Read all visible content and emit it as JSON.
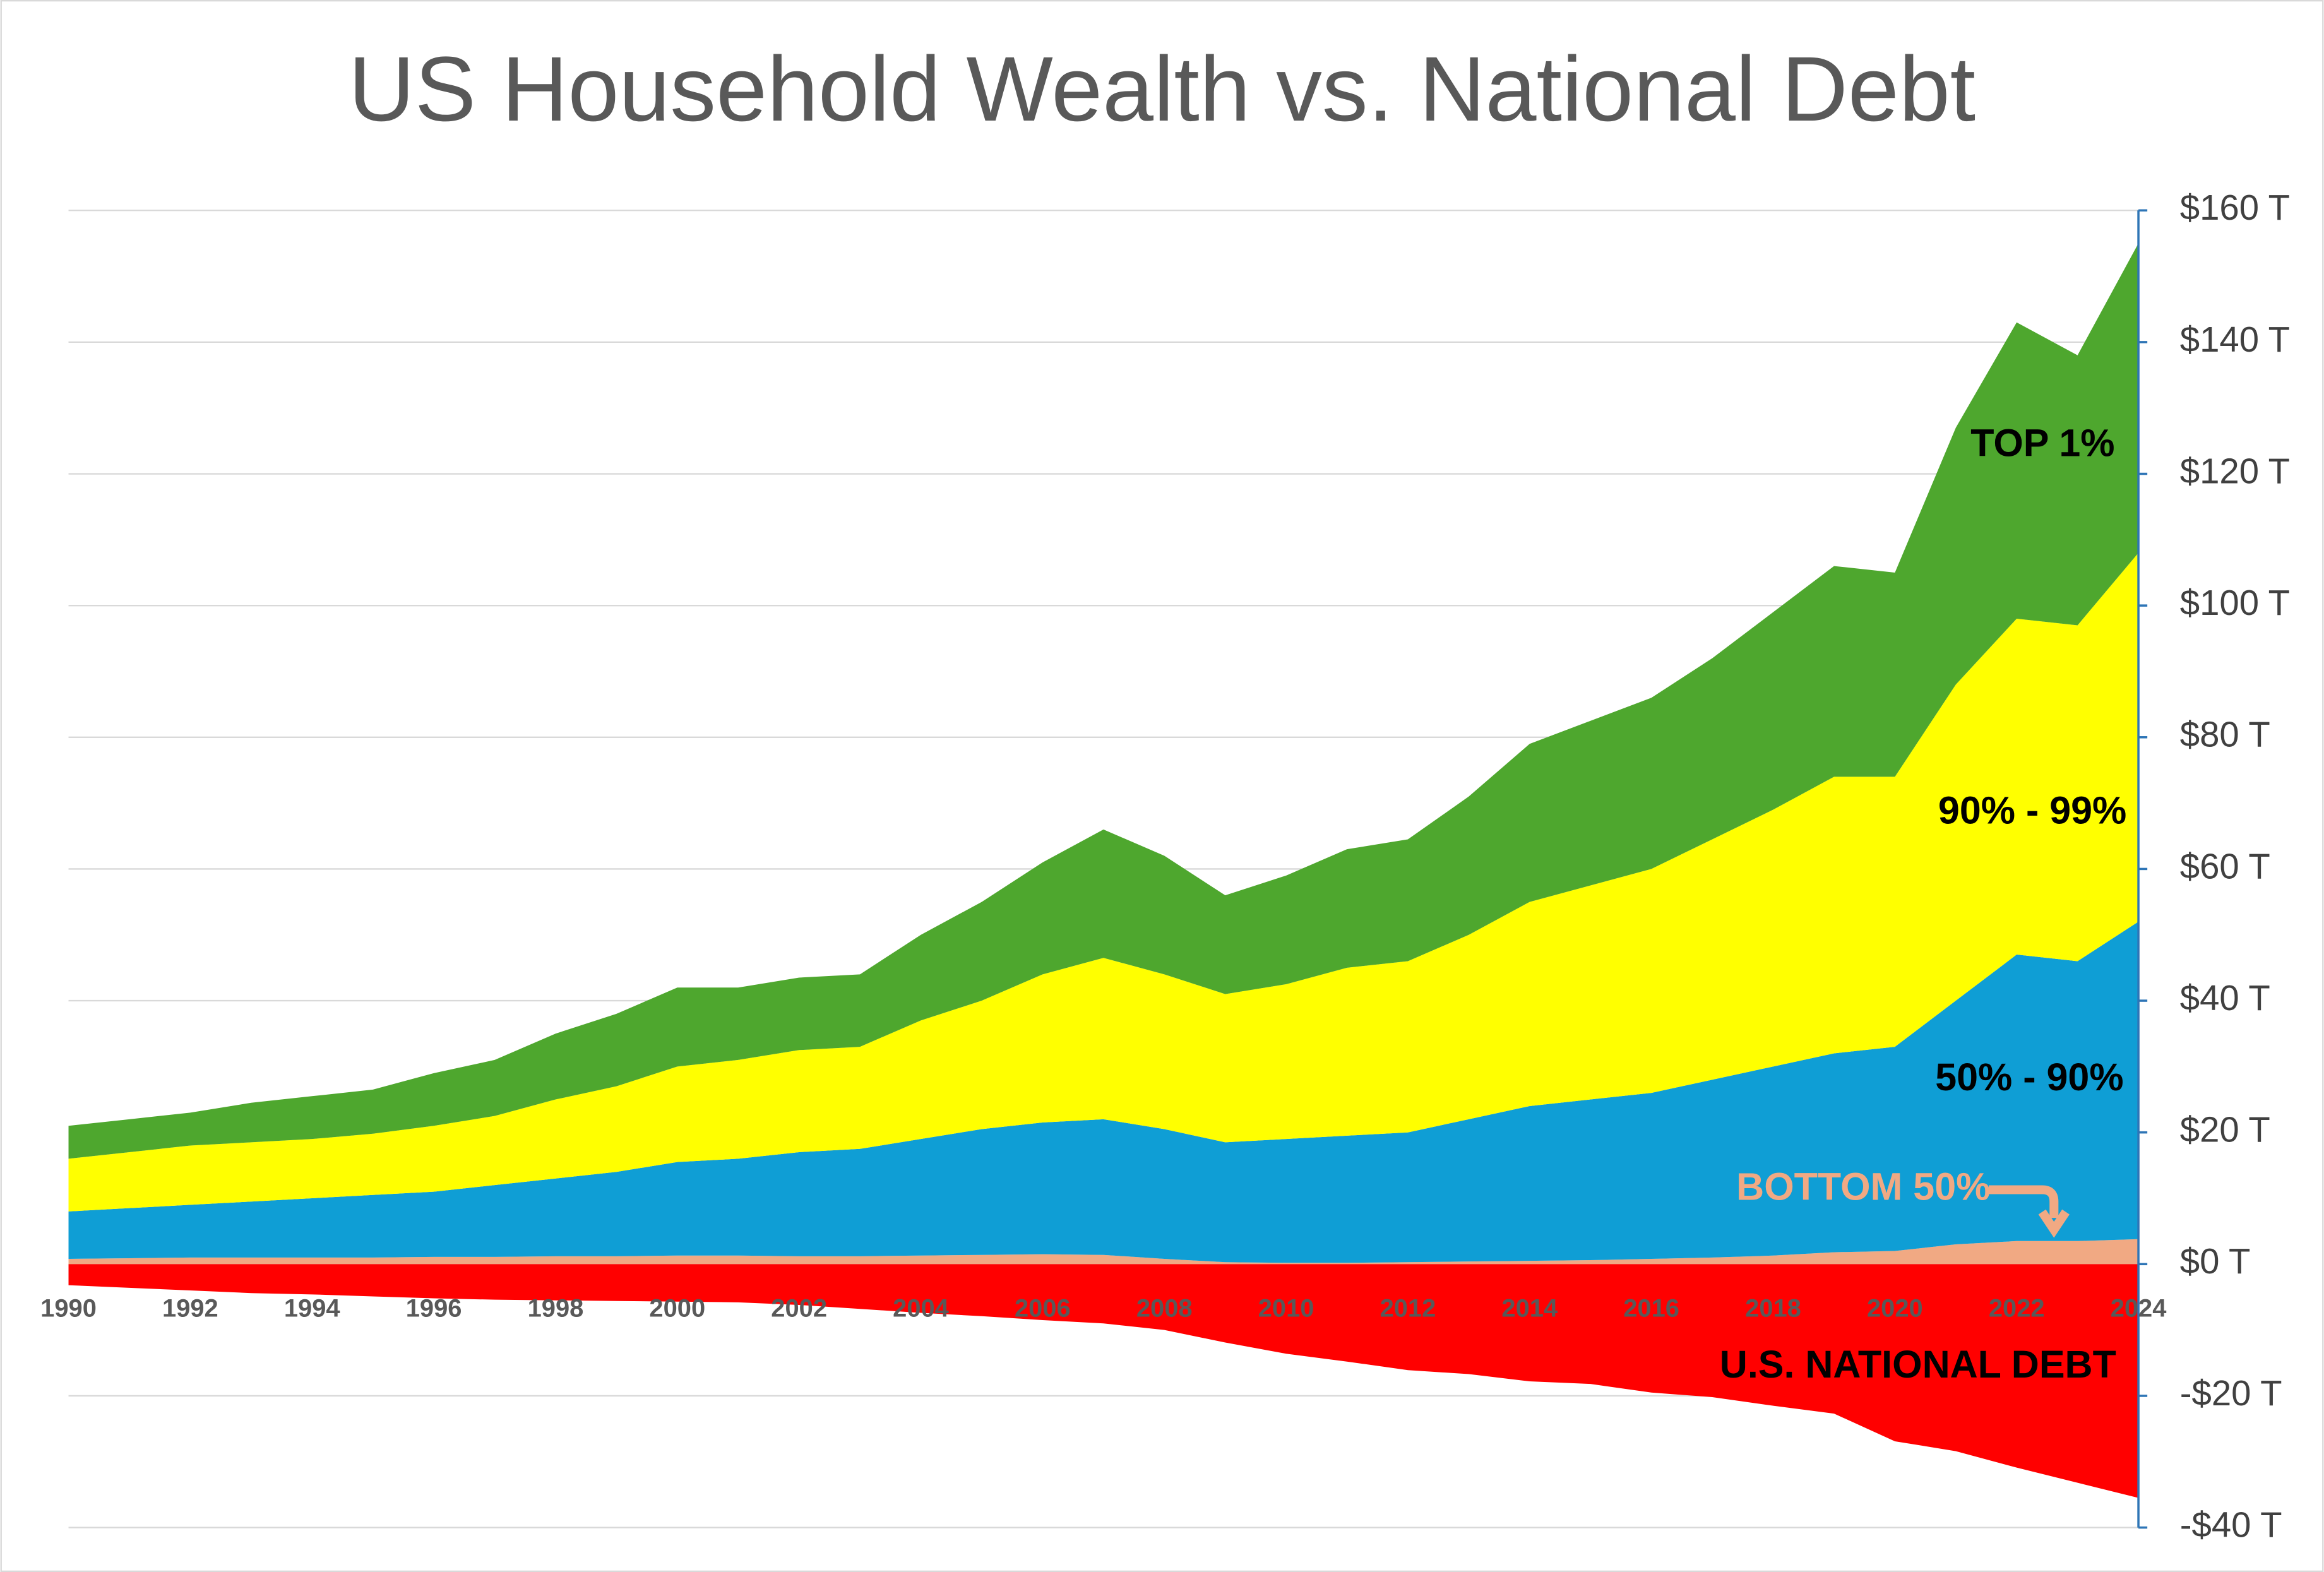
{
  "chart_data": {
    "type": "stacked-area",
    "title": "US Household Wealth vs. National Debt",
    "x": [
      1990,
      1991,
      1992,
      1993,
      1994,
      1995,
      1996,
      1997,
      1998,
      1999,
      2000,
      2001,
      2002,
      2003,
      2004,
      2005,
      2006,
      2007,
      2008,
      2009,
      2010,
      2011,
      2012,
      2013,
      2014,
      2015,
      2016,
      2017,
      2018,
      2019,
      2020,
      2021,
      2022,
      2023,
      2024
    ],
    "xlim": [
      1990,
      2024
    ],
    "xticks": [
      1990,
      1992,
      1994,
      1996,
      1998,
      2000,
      2002,
      2004,
      2006,
      2008,
      2010,
      2012,
      2014,
      2016,
      2018,
      2020,
      2022,
      2024
    ],
    "ylim": [
      -40,
      160
    ],
    "yticks": [
      {
        "value": 160,
        "label": "$160 T"
      },
      {
        "value": 140,
        "label": "$140 T"
      },
      {
        "value": 120,
        "label": "$120 T"
      },
      {
        "value": 100,
        "label": "$100 T"
      },
      {
        "value": 80,
        "label": "$80 T"
      },
      {
        "value": 60,
        "label": "$60 T"
      },
      {
        "value": 40,
        "label": "$40 T"
      },
      {
        "value": 20,
        "label": "$20 T"
      },
      {
        "value": 0,
        "label": "$0 T"
      },
      {
        "value": -20,
        "label": "-$20 T"
      },
      {
        "value": -40,
        "label": "-$40 T"
      }
    ],
    "grid": true,
    "y_axis_side": "right",
    "series": [
      {
        "name": "BOTTOM 50%",
        "color": "#f1a983",
        "values": [
          0.8,
          0.9,
          1,
          1,
          1,
          1,
          1.1,
          1.1,
          1.2,
          1.2,
          1.3,
          1.3,
          1.2,
          1.2,
          1.3,
          1.4,
          1.5,
          1.4,
          0.8,
          0.3,
          0.2,
          0.2,
          0.3,
          0.4,
          0.5,
          0.6,
          0.8,
          1.0,
          1.3,
          1.8,
          2.0,
          3.0,
          3.5,
          3.5,
          3.8
        ]
      },
      {
        "name": "50% - 90%",
        "color": "#0f9ed5",
        "values": [
          7.2,
          7.6,
          8,
          8.5,
          9,
          9.5,
          9.9,
          10.9,
          11.8,
          12.8,
          14.2,
          14.7,
          15.8,
          16.3,
          17.7,
          19.1,
          20,
          20.6,
          19.7,
          18.2,
          18.8,
          19.3,
          19.7,
          21.6,
          23.5,
          24.4,
          25.2,
          27,
          28.7,
          30.2,
          31,
          37,
          43.5,
          42.5,
          48.2
        ]
      },
      {
        "name": "90% - 99%",
        "color": "#ffff00",
        "values": [
          8,
          8.5,
          9,
          9,
          9,
          9.3,
          10,
          10.5,
          12,
          13,
          14.5,
          15,
          15.5,
          15.5,
          18,
          19.5,
          22.5,
          24.5,
          23.5,
          22.5,
          23.5,
          25.5,
          26,
          28,
          31,
          32.5,
          34,
          36.5,
          39,
          42,
          41,
          48,
          51,
          51,
          56
        ]
      },
      {
        "name": "TOP 1%",
        "color": "#4ea72e",
        "values": [
          5,
          5,
          5,
          6,
          6.5,
          6.7,
          8,
          8.5,
          10,
          11,
          12,
          11,
          11,
          11,
          13,
          15,
          17,
          19.5,
          18,
          15,
          16.5,
          18,
          18.5,
          21,
          24,
          25,
          26,
          27.5,
          30,
          32,
          31,
          39,
          45,
          41,
          47
        ]
      },
      {
        "name": "U.S. NATIONAL DEBT",
        "color": "#ff0000",
        "values": [
          -3.2,
          -3.6,
          -4.0,
          -4.4,
          -4.6,
          -4.9,
          -5.2,
          -5.4,
          -5.5,
          -5.6,
          -5.7,
          -5.8,
          -6.2,
          -6.8,
          -7.4,
          -7.9,
          -8.5,
          -9.0,
          -10.0,
          -11.9,
          -13.6,
          -14.8,
          -16.1,
          -16.7,
          -17.8,
          -18.2,
          -19.5,
          -20.2,
          -21.5,
          -22.7,
          -26.9,
          -28.4,
          -30.9,
          -33.2,
          -35.5
        ]
      }
    ]
  }
}
